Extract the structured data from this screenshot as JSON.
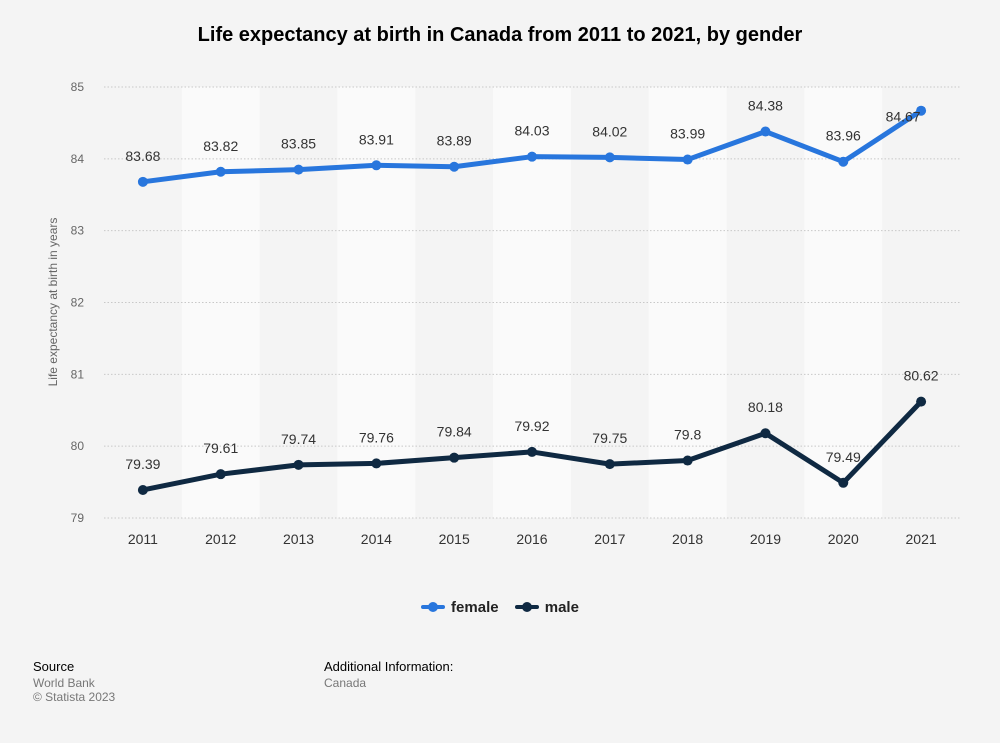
{
  "chart_data": {
    "type": "line",
    "title": "Life expectancy at birth in Canada from 2011 to 2021, by gender",
    "xlabel": "",
    "ylabel": "Life expectancy at birth in years",
    "ylim": [
      79,
      85
    ],
    "yticks": [
      "79",
      "80",
      "81",
      "82",
      "83",
      "84",
      "85"
    ],
    "categories": [
      "2011",
      "2012",
      "2013",
      "2014",
      "2015",
      "2016",
      "2017",
      "2018",
      "2019",
      "2020",
      "2021"
    ],
    "series": [
      {
        "name": "female",
        "color": "#2876dd",
        "values": [
          83.68,
          83.82,
          83.85,
          83.91,
          83.89,
          84.03,
          84.02,
          83.99,
          84.38,
          83.96,
          84.67
        ],
        "labels": [
          "83.68",
          "83.82",
          "83.85",
          "83.91",
          "83.89",
          "84.03",
          "84.02",
          "83.99",
          "84.38",
          "83.96",
          "84.67"
        ]
      },
      {
        "name": "male",
        "color": "#0f2942",
        "values": [
          79.39,
          79.61,
          79.74,
          79.76,
          79.84,
          79.92,
          79.75,
          79.8,
          80.18,
          79.49,
          80.62
        ],
        "labels": [
          "79.39",
          "79.61",
          "79.74",
          "79.76",
          "79.84",
          "79.92",
          "79.75",
          "79.8",
          "80.18",
          "79.49",
          "80.62"
        ]
      }
    ],
    "grid": true,
    "legend_position": "bottom"
  },
  "footer": {
    "source_label": "Source",
    "source_lines": [
      "World Bank",
      "© Statista 2023"
    ],
    "info_label": "Additional Information:",
    "info_value": "Canada"
  }
}
